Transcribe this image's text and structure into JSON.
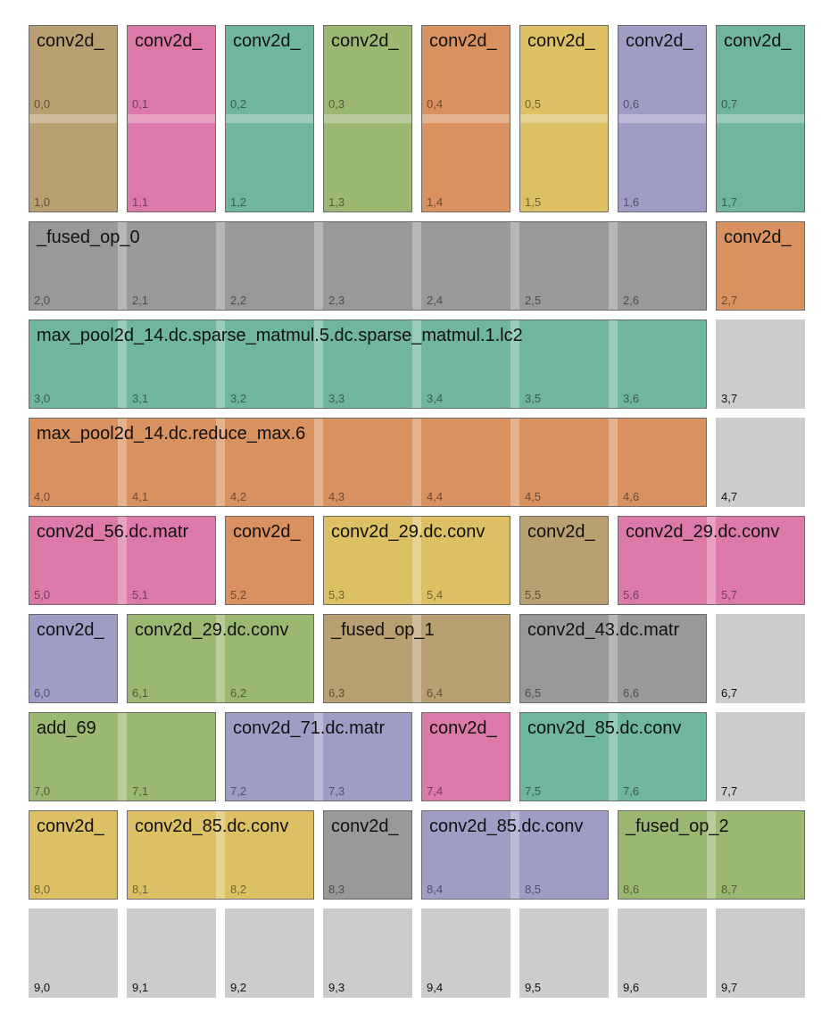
{
  "coords": [
    [
      "0,0",
      "0,1",
      "0,2",
      "0,3",
      "0,4",
      "0,5",
      "0,6",
      "0,7"
    ],
    [
      "1,0",
      "1,1",
      "1,2",
      "1,3",
      "1,4",
      "1,5",
      "1,6",
      "1,7"
    ],
    [
      "2,0",
      "2,1",
      "2,2",
      "2,3",
      "2,4",
      "2,5",
      "2,6",
      "2,7"
    ],
    [
      "3,0",
      "3,1",
      "3,2",
      "3,3",
      "3,4",
      "3,5",
      "3,6",
      "3,7"
    ],
    [
      "4,0",
      "4,1",
      "4,2",
      "4,3",
      "4,4",
      "4,5",
      "4,6",
      "4,7"
    ],
    [
      "5,0",
      "5,1",
      "5,2",
      "5,3",
      "5,4",
      "5,5",
      "5,6",
      "5,7"
    ],
    [
      "6,0",
      "6,1",
      "6,2",
      "6,3",
      "6,4",
      "6,5",
      "6,6",
      "6,7"
    ],
    [
      "7,0",
      "7,1",
      "7,2",
      "7,3",
      "7,4",
      "7,5",
      "7,6",
      "7,7"
    ],
    [
      "8,0",
      "8,1",
      "8,2",
      "8,3",
      "8,4",
      "8,5",
      "8,6",
      "8,7"
    ],
    [
      "9,0",
      "9,1",
      "9,2",
      "9,3",
      "9,4",
      "9,5",
      "9,6",
      "9,7"
    ]
  ],
  "ops": [
    {
      "label": "conv2d_",
      "row": 0,
      "col": 0,
      "rows": 2,
      "cols": 1,
      "color": "#b9a072"
    },
    {
      "label": "conv2d_",
      "row": 0,
      "col": 1,
      "rows": 2,
      "cols": 1,
      "color": "#dc79a9"
    },
    {
      "label": "conv2d_",
      "row": 0,
      "col": 2,
      "rows": 2,
      "cols": 1,
      "color": "#6fb5a0"
    },
    {
      "label": "conv2d_",
      "row": 0,
      "col": 3,
      "rows": 2,
      "cols": 1,
      "color": "#9bb872"
    },
    {
      "label": "conv2d_",
      "row": 0,
      "col": 4,
      "rows": 2,
      "cols": 1,
      "color": "#d8915f"
    },
    {
      "label": "conv2d_",
      "row": 0,
      "col": 5,
      "rows": 2,
      "cols": 1,
      "color": "#dcc063"
    },
    {
      "label": "conv2d_",
      "row": 0,
      "col": 6,
      "rows": 2,
      "cols": 1,
      "color": "#9f9dc5"
    },
    {
      "label": "conv2d_",
      "row": 0,
      "col": 7,
      "rows": 2,
      "cols": 1,
      "color": "#6fb5a0"
    },
    {
      "label": "_fused_op_0",
      "row": 2,
      "col": 0,
      "rows": 1,
      "cols": 7,
      "color": "#999999"
    },
    {
      "label": "conv2d_",
      "row": 2,
      "col": 7,
      "rows": 1,
      "cols": 1,
      "color": "#d8915f"
    },
    {
      "label": "max_pool2d_14.dc.sparse_matmul.5.dc.sparse_matmul.1.lc2",
      "row": 3,
      "col": 0,
      "rows": 1,
      "cols": 7,
      "color": "#6fb5a0"
    },
    {
      "label": "max_pool2d_14.dc.reduce_max.6",
      "row": 4,
      "col": 0,
      "rows": 1,
      "cols": 7,
      "color": "#d8915f"
    },
    {
      "label": "conv2d_56.dc.matr",
      "row": 5,
      "col": 0,
      "rows": 1,
      "cols": 2,
      "color": "#dc79a9"
    },
    {
      "label": "conv2d_",
      "row": 5,
      "col": 2,
      "rows": 1,
      "cols": 1,
      "color": "#d8915f"
    },
    {
      "label": "conv2d_29.dc.conv",
      "row": 5,
      "col": 3,
      "rows": 1,
      "cols": 2,
      "color": "#dcc063"
    },
    {
      "label": "conv2d_",
      "row": 5,
      "col": 5,
      "rows": 1,
      "cols": 1,
      "color": "#b9a072"
    },
    {
      "label": "conv2d_29.dc.conv",
      "row": 5,
      "col": 6,
      "rows": 1,
      "cols": 2,
      "color": "#dc79a9"
    },
    {
      "label": "conv2d_",
      "row": 6,
      "col": 0,
      "rows": 1,
      "cols": 1,
      "color": "#9f9dc5"
    },
    {
      "label": "conv2d_29.dc.conv",
      "row": 6,
      "col": 1,
      "rows": 1,
      "cols": 2,
      "color": "#9bb872"
    },
    {
      "label": "_fused_op_1",
      "row": 6,
      "col": 3,
      "rows": 1,
      "cols": 2,
      "color": "#b9a072"
    },
    {
      "label": "conv2d_43.dc.matr",
      "row": 6,
      "col": 5,
      "rows": 1,
      "cols": 2,
      "color": "#999999"
    },
    {
      "label": "add_69",
      "row": 7,
      "col": 0,
      "rows": 1,
      "cols": 2,
      "color": "#9bb872"
    },
    {
      "label": "conv2d_71.dc.matr",
      "row": 7,
      "col": 2,
      "rows": 1,
      "cols": 2,
      "color": "#9f9dc5"
    },
    {
      "label": "conv2d_",
      "row": 7,
      "col": 4,
      "rows": 1,
      "cols": 1,
      "color": "#dc79a9"
    },
    {
      "label": "conv2d_85.dc.conv",
      "row": 7,
      "col": 5,
      "rows": 1,
      "cols": 2,
      "color": "#6fb5a0"
    },
    {
      "label": "conv2d_",
      "row": 8,
      "col": 0,
      "rows": 1,
      "cols": 1,
      "color": "#dcc063"
    },
    {
      "label": "conv2d_85.dc.conv",
      "row": 8,
      "col": 1,
      "rows": 1,
      "cols": 2,
      "color": "#dcc063"
    },
    {
      "label": "conv2d_",
      "row": 8,
      "col": 3,
      "rows": 1,
      "cols": 1,
      "color": "#999999"
    },
    {
      "label": "conv2d_85.dc.conv",
      "row": 8,
      "col": 4,
      "rows": 1,
      "cols": 2,
      "color": "#9f9dc5"
    },
    {
      "label": "_fused_op_2",
      "row": 8,
      "col": 6,
      "rows": 1,
      "cols": 2,
      "color": "#9bb872"
    }
  ]
}
